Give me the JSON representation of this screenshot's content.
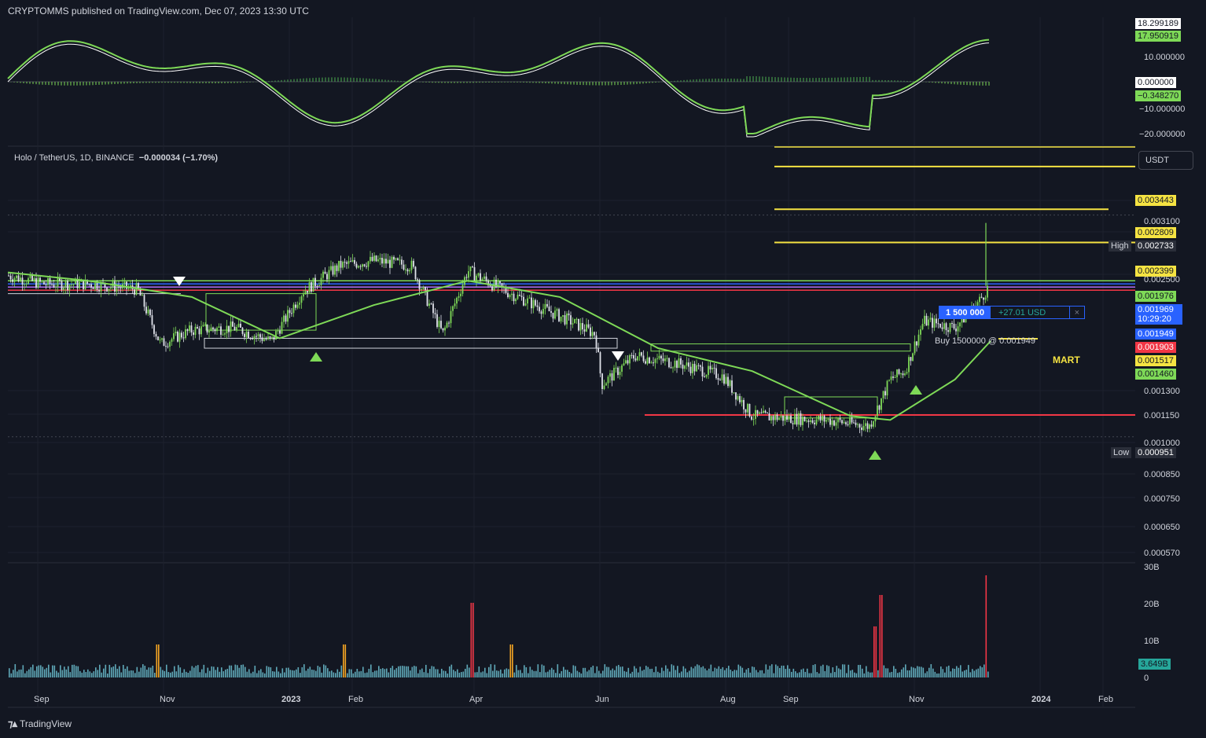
{
  "header": {
    "text": "CRYPTOMMS published on TradingView.com, Dec 07, 2023 13:30 UTC"
  },
  "symbol": {
    "name": "Holo / TetherUS, 1D, BINANCE",
    "change": "−0.000034 (−1.70%)"
  },
  "currency_button": "USDT",
  "oscillator": {
    "axis_labels": [
      "10.000000",
      "−10.000000",
      "−20.000000"
    ],
    "tags": {
      "top": "18.299189",
      "green": "17.950919",
      "zero": "0.000000",
      "neg": "−0.348270"
    }
  },
  "price_axis": {
    "ticks": [
      "0.003100",
      "0.002500",
      "0.001300",
      "0.001150",
      "0.001000",
      "0.000850",
      "0.000750",
      "0.000650",
      "0.000570"
    ],
    "tags": {
      "y1": "0.003443",
      "y2": "0.002809",
      "high_label": "High",
      "high": "0.002733",
      "y3": "0.002399",
      "g1": "0.001976",
      "current": "0.001969",
      "timer": "10:29:20",
      "b1": "0.001949",
      "r1": "0.001903",
      "y4": "0.001517",
      "g2": "0.001460",
      "low_label": "Low",
      "low": "0.000951"
    }
  },
  "order": {
    "qty": "1 500 000",
    "pnl": "+27.01 USD",
    "close": "×",
    "note": "Buy 1500000 @ 0.001949"
  },
  "annotation": "MART",
  "volume_axis": {
    "ticks": [
      "30B",
      "20B",
      "10B",
      "0"
    ],
    "current": "3.649B"
  },
  "time_axis": [
    "Sep",
    "Nov",
    "2023",
    "Feb",
    "Apr",
    "Jun",
    "Aug",
    "Sep",
    "Nov",
    "2024",
    "Feb"
  ],
  "footer": {
    "brand": "TradingView"
  },
  "colors": {
    "bg": "#131722",
    "green": "#7ed957",
    "yellow": "#f5e342",
    "red": "#f23645",
    "blue": "#2962ff"
  },
  "chart_data": {
    "type": "candlestick",
    "title": "Holo / TetherUS, 1D, BINANCE",
    "y_scale": "log",
    "ylim": [
      0.00053,
      0.0036
    ],
    "series": [
      {
        "name": "price",
        "x": [
          "2022-08-24",
          "2022-09-10",
          "2022-10-01",
          "2022-10-25",
          "2022-11-05",
          "2022-11-20",
          "2022-12-10",
          "2022-12-28",
          "2023-01-12",
          "2023-01-30",
          "2023-02-15",
          "2023-03-05",
          "2023-03-20",
          "2023-04-01",
          "2023-04-14",
          "2023-05-01",
          "2023-05-20",
          "2023-06-01",
          "2023-06-04",
          "2023-06-20",
          "2023-07-10",
          "2023-08-01",
          "2023-08-15",
          "2023-09-01",
          "2023-09-20",
          "2023-10-10",
          "2023-10-20",
          "2023-10-27",
          "2023-11-05",
          "2023-11-20",
          "2023-12-01",
          "2023-12-07"
        ],
        "values": [
          0.00205,
          0.00197,
          0.00197,
          0.00192,
          0.00148,
          0.00158,
          0.0016,
          0.0015,
          0.0019,
          0.00215,
          0.0022,
          0.00215,
          0.00155,
          0.0021,
          0.00195,
          0.0018,
          0.00165,
          0.00155,
          0.00122,
          0.0014,
          0.00135,
          0.00127,
          0.00105,
          0.00104,
          0.00103,
          0.001,
          0.00125,
          0.0013,
          0.00165,
          0.0016,
          0.0018,
          0.00197
        ]
      },
      {
        "name": "moving average",
        "x": [
          "2022-08-24",
          "2022-10-01",
          "2022-11-20",
          "2023-01-01",
          "2023-02-15",
          "2023-04-01",
          "2023-05-15",
          "2023-07-01",
          "2023-08-15",
          "2023-10-01",
          "2023-10-20",
          "2023-11-20",
          "2023-12-07"
        ],
        "values": [
          0.00208,
          0.002,
          0.00185,
          0.00152,
          0.00178,
          0.002,
          0.00185,
          0.00145,
          0.0013,
          0.00105,
          0.00103,
          0.00125,
          0.0015
        ]
      }
    ],
    "levels": [
      0.003443,
      0.002809,
      0.002399,
      0.001517
    ],
    "high": 0.002733,
    "low": 0.000951,
    "last": 0.001969
  }
}
